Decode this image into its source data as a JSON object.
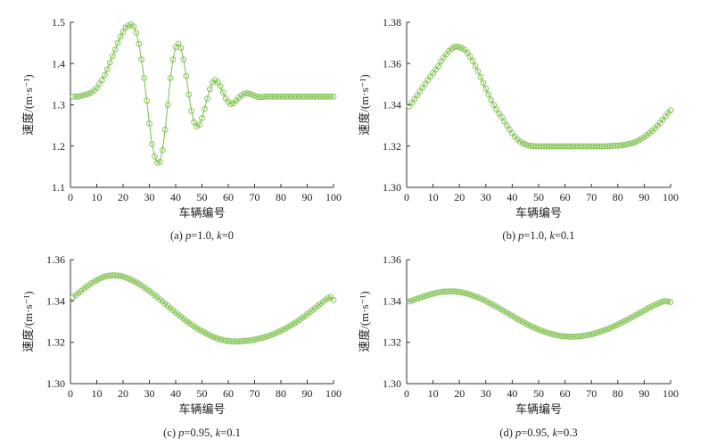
{
  "chart_data": [
    {
      "type": "line",
      "caption": "(a) p=1.0, k=0",
      "xlabel": "车辆编号",
      "ylabel": "速度/(m·s⁻¹)",
      "xlim": [
        0,
        100
      ],
      "ylim": [
        1.1,
        1.5
      ],
      "x_ticks": [
        "0",
        "10",
        "20",
        "30",
        "40",
        "50",
        "60",
        "70",
        "80",
        "90",
        "100"
      ],
      "y_ticks": [
        "1.1",
        "1.2",
        "1.3",
        "1.4",
        "1.5"
      ],
      "color": "#7cc04a",
      "marker": "open-circle",
      "x": [
        1,
        2,
        3,
        4,
        5,
        6,
        7,
        8,
        9,
        10,
        11,
        12,
        13,
        14,
        15,
        16,
        17,
        18,
        19,
        20,
        21,
        22,
        23,
        24,
        25,
        26,
        27,
        28,
        29,
        30,
        31,
        32,
        33,
        34,
        35,
        36,
        37,
        38,
        39,
        40,
        41,
        42,
        43,
        44,
        45,
        46,
        47,
        48,
        49,
        50,
        51,
        52,
        53,
        54,
        55,
        56,
        57,
        58,
        59,
        60,
        61,
        62,
        63,
        64,
        65,
        66,
        67,
        68,
        69,
        70,
        71,
        72,
        73,
        74,
        75,
        76,
        77,
        78,
        79,
        80,
        81,
        82,
        83,
        84,
        85,
        86,
        87,
        88,
        89,
        90,
        91,
        92,
        93,
        94,
        95,
        96,
        97,
        98,
        99,
        100
      ],
      "y": [
        1.32,
        1.32,
        1.32,
        1.322,
        1.323,
        1.325,
        1.327,
        1.33,
        1.335,
        1.341,
        1.35,
        1.36,
        1.372,
        1.386,
        1.402,
        1.418,
        1.434,
        1.45,
        1.465,
        1.477,
        1.487,
        1.492,
        1.495,
        1.49,
        1.475,
        1.448,
        1.41,
        1.365,
        1.31,
        1.255,
        1.205,
        1.175,
        1.16,
        1.162,
        1.19,
        1.24,
        1.3,
        1.365,
        1.41,
        1.44,
        1.448,
        1.438,
        1.41,
        1.37,
        1.325,
        1.285,
        1.258,
        1.248,
        1.252,
        1.268,
        1.29,
        1.315,
        1.338,
        1.354,
        1.36,
        1.355,
        1.345,
        1.33,
        1.316,
        1.307,
        1.302,
        1.304,
        1.31,
        1.317,
        1.323,
        1.327,
        1.328,
        1.327,
        1.325,
        1.322,
        1.32,
        1.319,
        1.319,
        1.32,
        1.32,
        1.32,
        1.32,
        1.32,
        1.32,
        1.32,
        1.32,
        1.32,
        1.32,
        1.32,
        1.32,
        1.32,
        1.32,
        1.32,
        1.32,
        1.32,
        1.32,
        1.32,
        1.32,
        1.32,
        1.32,
        1.32,
        1.32,
        1.32,
        1.32,
        1.32
      ]
    },
    {
      "type": "scatter",
      "caption": "(b) p=1.0, k=0.1",
      "xlabel": "车辆编号",
      "ylabel": "速度/(m·s⁻¹)",
      "xlim": [
        0,
        100
      ],
      "ylim": [
        1.3,
        1.38
      ],
      "x_ticks": [
        "0",
        "10",
        "20",
        "30",
        "40",
        "50",
        "60",
        "70",
        "80",
        "90",
        "100"
      ],
      "y_ticks": [
        "1.30",
        "1.32",
        "1.34",
        "1.36",
        "1.38"
      ],
      "color": "#7cc04a",
      "marker": "open-circle",
      "x": [
        1,
        2,
        3,
        4,
        5,
        6,
        7,
        8,
        9,
        10,
        11,
        12,
        13,
        14,
        15,
        16,
        17,
        18,
        19,
        20,
        21,
        22,
        23,
        24,
        25,
        26,
        27,
        28,
        29,
        30,
        31,
        32,
        33,
        34,
        35,
        36,
        37,
        38,
        39,
        40,
        41,
        42,
        43,
        44,
        45,
        46,
        47,
        48,
        49,
        50,
        51,
        52,
        53,
        54,
        55,
        56,
        57,
        58,
        59,
        60,
        61,
        62,
        63,
        64,
        65,
        66,
        67,
        68,
        69,
        70,
        71,
        72,
        73,
        74,
        75,
        76,
        77,
        78,
        79,
        80,
        81,
        82,
        83,
        84,
        85,
        86,
        87,
        88,
        89,
        90,
        91,
        92,
        93,
        94,
        95,
        96,
        97,
        98,
        99,
        100
      ],
      "y": [
        1.3393,
        1.341,
        1.3428,
        1.3446,
        1.3465,
        1.3484,
        1.3502,
        1.352,
        1.3538,
        1.3555,
        1.3571,
        1.3587,
        1.361,
        1.3629,
        1.3645,
        1.3661,
        1.3672,
        1.368,
        1.3683,
        1.368,
        1.3674,
        1.3666,
        1.3652,
        1.3634,
        1.3613,
        1.3589,
        1.3563,
        1.3535,
        1.3507,
        1.3479,
        1.3451,
        1.3425,
        1.34,
        1.3378,
        1.3358,
        1.334,
        1.332,
        1.33,
        1.3281,
        1.3262,
        1.3246,
        1.3233,
        1.3222,
        1.3214,
        1.3208,
        1.3204,
        1.3201,
        1.32,
        1.3199,
        1.3199,
        1.3199,
        1.3199,
        1.3199,
        1.3199,
        1.3199,
        1.3199,
        1.3199,
        1.3199,
        1.3199,
        1.3199,
        1.3199,
        1.3199,
        1.3199,
        1.3199,
        1.3199,
        1.3199,
        1.3199,
        1.3199,
        1.3199,
        1.3199,
        1.3199,
        1.3199,
        1.3199,
        1.3199,
        1.3199,
        1.32,
        1.32,
        1.3201,
        1.3202,
        1.3202,
        1.3203,
        1.3205,
        1.3207,
        1.321,
        1.3213,
        1.3217,
        1.3222,
        1.3228,
        1.3236,
        1.3244,
        1.3253,
        1.3263,
        1.3274,
        1.3286,
        1.3299,
        1.3313,
        1.3328,
        1.3344,
        1.3361,
        1.3373
      ]
    },
    {
      "type": "scatter",
      "caption": "(c) p=0.95, k=0.1",
      "xlabel": "车辆编号",
      "ylabel": "速度/(m·s⁻¹)",
      "xlim": [
        0,
        100
      ],
      "ylim": [
        1.3,
        1.36
      ],
      "x_ticks": [
        "0",
        "10",
        "20",
        "30",
        "40",
        "50",
        "60",
        "70",
        "80",
        "90",
        "100"
      ],
      "y_ticks": [
        "1.30",
        "1.32",
        "1.34",
        "1.36"
      ],
      "color": "#7cc04a",
      "marker": "open-circle",
      "x": [
        1,
        2,
        3,
        4,
        5,
        6,
        7,
        8,
        9,
        10,
        11,
        12,
        13,
        14,
        15,
        16,
        17,
        18,
        19,
        20,
        21,
        22,
        23,
        24,
        25,
        26,
        27,
        28,
        29,
        30,
        31,
        32,
        33,
        34,
        35,
        36,
        37,
        38,
        39,
        40,
        41,
        42,
        43,
        44,
        45,
        46,
        47,
        48,
        49,
        50,
        51,
        52,
        53,
        54,
        55,
        56,
        57,
        58,
        59,
        60,
        61,
        62,
        63,
        64,
        65,
        66,
        67,
        68,
        69,
        70,
        71,
        72,
        73,
        74,
        75,
        76,
        77,
        78,
        79,
        80,
        81,
        82,
        83,
        84,
        85,
        86,
        87,
        88,
        89,
        90,
        91,
        92,
        93,
        94,
        95,
        96,
        97,
        98,
        99,
        100
      ],
      "y": [
        1.3418,
        1.3428,
        1.3438,
        1.3448,
        1.3458,
        1.3468,
        1.3477,
        1.3486,
        1.3494,
        1.3501,
        1.3508,
        1.3513,
        1.3518,
        1.3521,
        1.3523,
        1.3524,
        1.3524,
        1.3523,
        1.3521,
        1.3518,
        1.3514,
        1.3509,
        1.3504,
        1.3497,
        1.349,
        1.3483,
        1.3475,
        1.3466,
        1.3457,
        1.3448,
        1.3438,
        1.3428,
        1.3418,
        1.3407,
        1.3397,
        1.3386,
        1.3376,
        1.3365,
        1.3355,
        1.3344,
        1.3334,
        1.3324,
        1.3314,
        1.3304,
        1.3295,
        1.3286,
        1.3277,
        1.3269,
        1.3261,
        1.3254,
        1.3247,
        1.324,
        1.3234,
        1.3228,
        1.3223,
        1.3218,
        1.3214,
        1.3211,
        1.3208,
        1.3206,
        1.3205,
        1.3204,
        1.3204,
        1.3204,
        1.3205,
        1.3206,
        1.3207,
        1.3209,
        1.3211,
        1.3213,
        1.3216,
        1.3219,
        1.3222,
        1.3226,
        1.323,
        1.3234,
        1.3239,
        1.3244,
        1.325,
        1.3256,
        1.3262,
        1.3269,
        1.3276,
        1.3283,
        1.3291,
        1.3299,
        1.3308,
        1.3317,
        1.3326,
        1.3336,
        1.3346,
        1.3356,
        1.3366,
        1.3376,
        1.3386,
        1.3396,
        1.3406,
        1.3414,
        1.342,
        1.3404
      ]
    },
    {
      "type": "scatter",
      "caption": "(d) p=0.95, k=0.3",
      "xlabel": "车辆编号",
      "ylabel": "速度/(m·s⁻¹)",
      "xlim": [
        0,
        100
      ],
      "ylim": [
        1.3,
        1.36
      ],
      "x_ticks": [
        "0",
        "10",
        "20",
        "30",
        "40",
        "50",
        "60",
        "70",
        "80",
        "90",
        "100"
      ],
      "y_ticks": [
        "1.30",
        "1.32",
        "1.34",
        "1.36"
      ],
      "color": "#7cc04a",
      "marker": "open-circle",
      "x": [
        1,
        2,
        3,
        4,
        5,
        6,
        7,
        8,
        9,
        10,
        11,
        12,
        13,
        14,
        15,
        16,
        17,
        18,
        19,
        20,
        21,
        22,
        23,
        24,
        25,
        26,
        27,
        28,
        29,
        30,
        31,
        32,
        33,
        34,
        35,
        36,
        37,
        38,
        39,
        40,
        41,
        42,
        43,
        44,
        45,
        46,
        47,
        48,
        49,
        50,
        51,
        52,
        53,
        54,
        55,
        56,
        57,
        58,
        59,
        60,
        61,
        62,
        63,
        64,
        65,
        66,
        67,
        68,
        69,
        70,
        71,
        72,
        73,
        74,
        75,
        76,
        77,
        78,
        79,
        80,
        81,
        82,
        83,
        84,
        85,
        86,
        87,
        88,
        89,
        90,
        91,
        92,
        93,
        94,
        95,
        96,
        97,
        98,
        99,
        100
      ],
      "y": [
        1.3398,
        1.3402,
        1.3407,
        1.3411,
        1.3416,
        1.342,
        1.3424,
        1.3428,
        1.3432,
        1.3435,
        1.3438,
        1.3441,
        1.3443,
        1.3445,
        1.3446,
        1.3446,
        1.3446,
        1.3446,
        1.3445,
        1.3443,
        1.3441,
        1.3438,
        1.3435,
        1.3431,
        1.3427,
        1.3422,
        1.3417,
        1.3412,
        1.3406,
        1.34,
        1.3393,
        1.3387,
        1.338,
        1.3373,
        1.3365,
        1.3358,
        1.335,
        1.3343,
        1.3335,
        1.3328,
        1.332,
        1.3313,
        1.3306,
        1.3299,
        1.3292,
        1.3285,
        1.3279,
        1.3273,
        1.3267,
        1.3262,
        1.3257,
        1.3252,
        1.3248,
        1.3244,
        1.324,
        1.3237,
        1.3234,
        1.3232,
        1.323,
        1.3229,
        1.3228,
        1.3227,
        1.3227,
        1.3228,
        1.3229,
        1.323,
        1.3232,
        1.3234,
        1.3236,
        1.3239,
        1.3242,
        1.3246,
        1.325,
        1.3254,
        1.3259,
        1.3264,
        1.3269,
        1.3275,
        1.328,
        1.3286,
        1.3293,
        1.3299,
        1.3306,
        1.3312,
        1.3319,
        1.3326,
        1.3333,
        1.334,
        1.3347,
        1.3354,
        1.3361,
        1.3368,
        1.3374,
        1.3381,
        1.3387,
        1.3393,
        1.3397,
        1.3399,
        1.3398,
        1.3395
      ]
    }
  ]
}
